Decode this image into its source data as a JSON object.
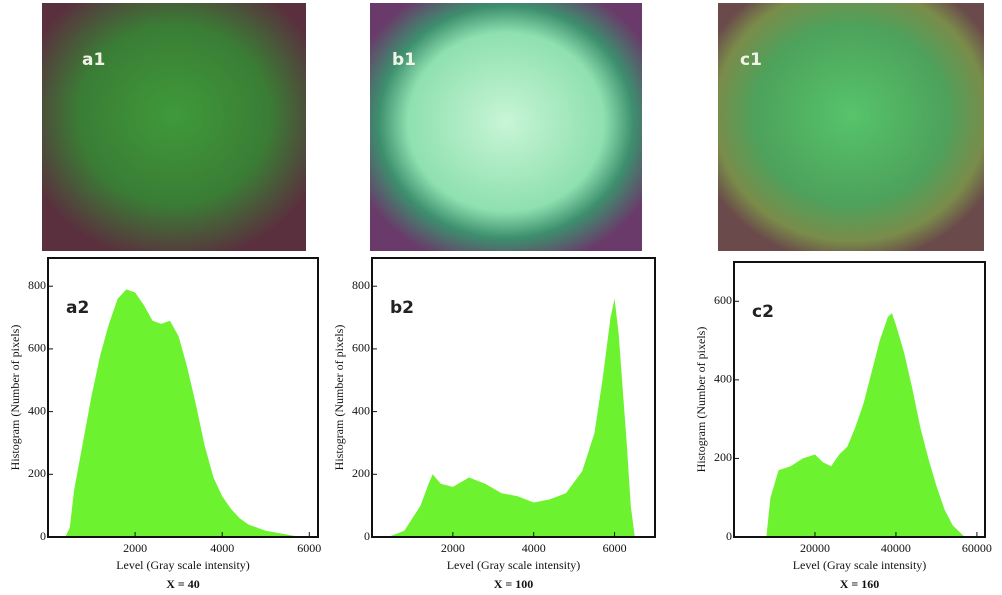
{
  "images": [
    {
      "label": "a1"
    },
    {
      "label": "b1"
    },
    {
      "label": "c1"
    }
  ],
  "chart_data": [
    {
      "type": "area",
      "panel_label": "a2",
      "color": "#6cf22e",
      "x_label": "Level (Gray scale intensity)",
      "y_label": "Histogram (Number of pixels)",
      "caption": "X = 40",
      "x": [
        0,
        400,
        500,
        600,
        800,
        1000,
        1200,
        1400,
        1600,
        1800,
        2000,
        2200,
        2400,
        2600,
        2800,
        3000,
        3200,
        3400,
        3600,
        3800,
        4000,
        4200,
        4400,
        4600,
        4800,
        5000,
        5400,
        5800,
        6000
      ],
      "values": [
        0,
        0,
        30,
        150,
        300,
        450,
        580,
        680,
        760,
        790,
        780,
        740,
        690,
        680,
        690,
        640,
        540,
        420,
        290,
        190,
        130,
        90,
        60,
        40,
        30,
        20,
        10,
        0,
        0
      ],
      "xlim": [
        0,
        6200
      ],
      "ylim": [
        0,
        890
      ],
      "xticks": [
        2000,
        4000,
        6000
      ],
      "yticks": [
        0,
        200,
        400,
        600,
        800
      ]
    },
    {
      "type": "area",
      "panel_label": "b2",
      "color": "#6cf22e",
      "x_label": "Level (Gray scale intensity)",
      "y_label": "Histogram (Number of pixels)",
      "caption": "X = 100",
      "x": [
        0,
        400,
        800,
        1200,
        1400,
        1500,
        1700,
        2000,
        2400,
        2800,
        3200,
        3600,
        4000,
        4400,
        4800,
        5200,
        5500,
        5700,
        5900,
        6000,
        6100,
        6300,
        6400,
        6500
      ],
      "values": [
        0,
        0,
        20,
        100,
        170,
        200,
        170,
        160,
        190,
        170,
        140,
        130,
        110,
        120,
        140,
        210,
        330,
        500,
        700,
        760,
        650,
        300,
        100,
        0
      ],
      "xlim": [
        0,
        7000
      ],
      "ylim": [
        0,
        890
      ],
      "xticks": [
        2000,
        4000,
        6000
      ],
      "yticks": [
        0,
        200,
        400,
        600,
        800
      ]
    },
    {
      "type": "area",
      "panel_label": "c2",
      "color": "#6cf22e",
      "x_label": "Level (Gray scale intensity)",
      "y_label": "Histogram (Number of pixels)",
      "caption": "X = 160",
      "x": [
        0,
        8000,
        9000,
        11000,
        14000,
        17000,
        20000,
        22000,
        24000,
        26000,
        28000,
        30000,
        32000,
        34000,
        36000,
        38000,
        39000,
        40000,
        42000,
        44000,
        46000,
        48000,
        50000,
        52000,
        54000,
        56000,
        57000
      ],
      "values": [
        0,
        0,
        100,
        170,
        180,
        200,
        210,
        190,
        180,
        210,
        230,
        280,
        340,
        420,
        500,
        560,
        570,
        540,
        470,
        380,
        280,
        200,
        130,
        70,
        30,
        10,
        0
      ],
      "xlim": [
        0,
        62000
      ],
      "ylim": [
        0,
        700
      ],
      "xticks": [
        20000,
        40000,
        60000
      ],
      "yticks": [
        0,
        200,
        400,
        600
      ]
    }
  ]
}
